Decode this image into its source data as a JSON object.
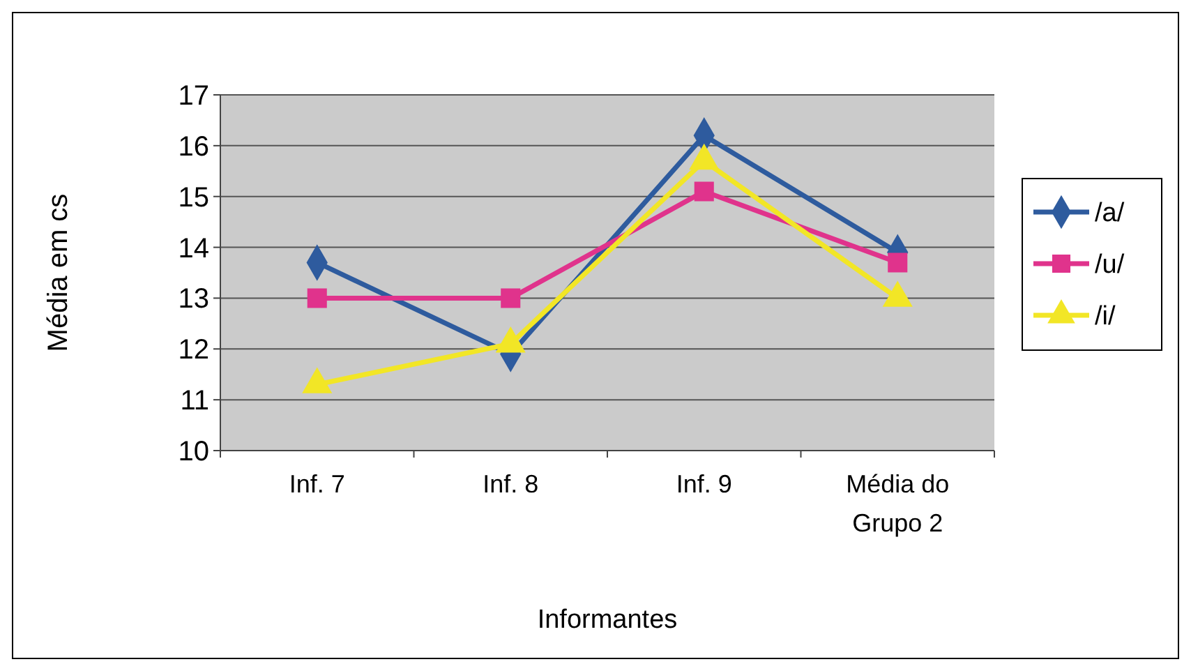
{
  "chart_data": {
    "type": "line",
    "xlabel": "Informantes",
    "ylabel": "Média em cs",
    "categories": [
      "Inf. 7",
      "Inf. 8",
      "Inf. 9",
      "Média do Grupo 2"
    ],
    "series": [
      {
        "name": "/a/",
        "color": "#2e5b9e",
        "marker": "diamond",
        "values": [
          13.7,
          11.9,
          16.2,
          13.9
        ]
      },
      {
        "name": "/u/",
        "color": "#e0338c",
        "marker": "square",
        "values": [
          13,
          13,
          15.1,
          13.7
        ]
      },
      {
        "name": "/i/",
        "color": "#f2e626",
        "marker": "triangle",
        "values": [
          11.3,
          12.1,
          15.7,
          13
        ]
      }
    ],
    "ylim": [
      10,
      17
    ],
    "yticks": [
      10,
      11,
      12,
      13,
      14,
      15,
      16,
      17
    ],
    "grid": "y",
    "legend": "right"
  }
}
